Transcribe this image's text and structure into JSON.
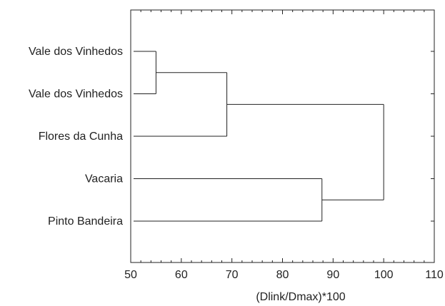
{
  "chart_data": {
    "type": "dendrogram",
    "title": "",
    "xlabel": "(Dlink/Dmax)*100",
    "ylabel": "",
    "xlim": [
      50,
      110
    ],
    "xticks": [
      50,
      60,
      70,
      80,
      90,
      100,
      110
    ],
    "leaves": [
      "Vale dos Vinhedos",
      "Vale dos Vinhedos",
      "Flores da Cunha",
      "Vacaria",
      "Pinto Bandeira"
    ],
    "merges": [
      {
        "left": 0,
        "right": 1,
        "height": 55.0
      },
      {
        "left": "m0",
        "right": 2,
        "height": 69.0
      },
      {
        "left": 3,
        "right": 4,
        "height": 87.8
      },
      {
        "left": "m1",
        "right": "m2",
        "height": 100.0
      }
    ],
    "grid": false,
    "line_color": "#222222"
  }
}
